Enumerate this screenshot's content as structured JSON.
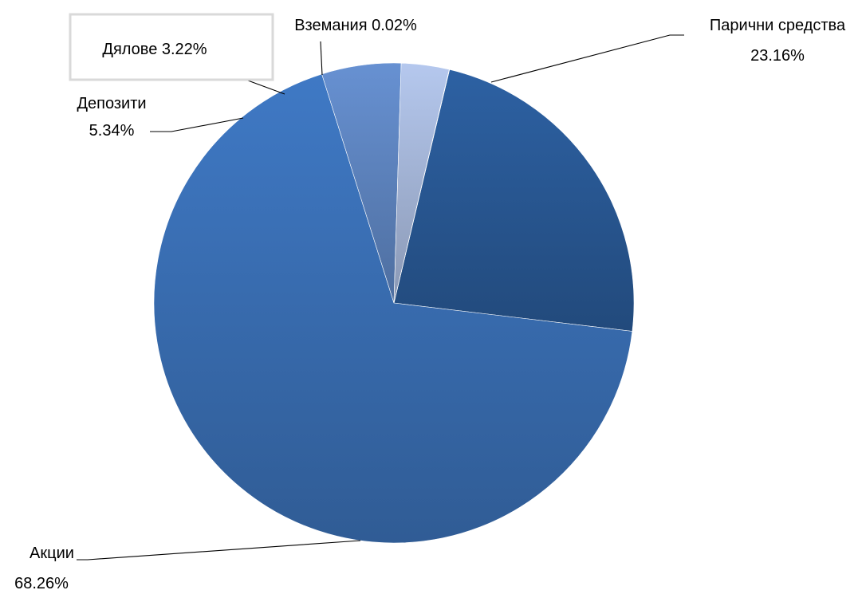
{
  "chart_data": {
    "type": "pie",
    "title": "",
    "categories": [
      "Парични средства",
      "Акции",
      "Депозити",
      "Дялове",
      "Вземания"
    ],
    "values": [
      23.16,
      68.26,
      5.34,
      3.22,
      0.02
    ],
    "labels": [
      {
        "lines": [
          "Парични средства",
          "23.16%"
        ]
      },
      {
        "lines": [
          "Акции",
          "68.26%"
        ]
      },
      {
        "lines": [
          "Депозити",
          "5.34%"
        ]
      },
      {
        "lines": [
          "Дялове 3.22%"
        ]
      },
      {
        "lines": [
          "Вземания 0.02%"
        ]
      }
    ],
    "colors": [
      "#2a5a97",
      "#3a70b6",
      "#5f86c2",
      "#a8b9dc",
      "#c9d4ea"
    ],
    "legend": "none"
  }
}
